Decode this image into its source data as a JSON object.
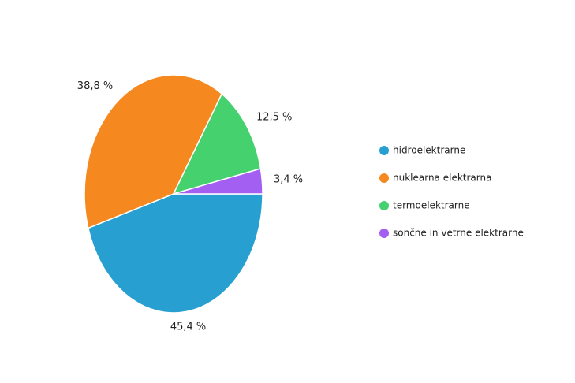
{
  "chart_data": {
    "type": "pie",
    "categories": [
      "hidroelektrarne",
      "nuklearna elektrarna",
      "termoelektrarne",
      "sončne in vetrne elektrarne"
    ],
    "values": [
      45.4,
      38.8,
      12.5,
      3.4
    ],
    "value_labels": [
      "45,4 %",
      "38,8 %",
      "12,5 %",
      "3,4 %"
    ],
    "colors": [
      "#27a0d1",
      "#f5891f",
      "#46d16f",
      "#a35ff2"
    ],
    "legend": "right"
  }
}
